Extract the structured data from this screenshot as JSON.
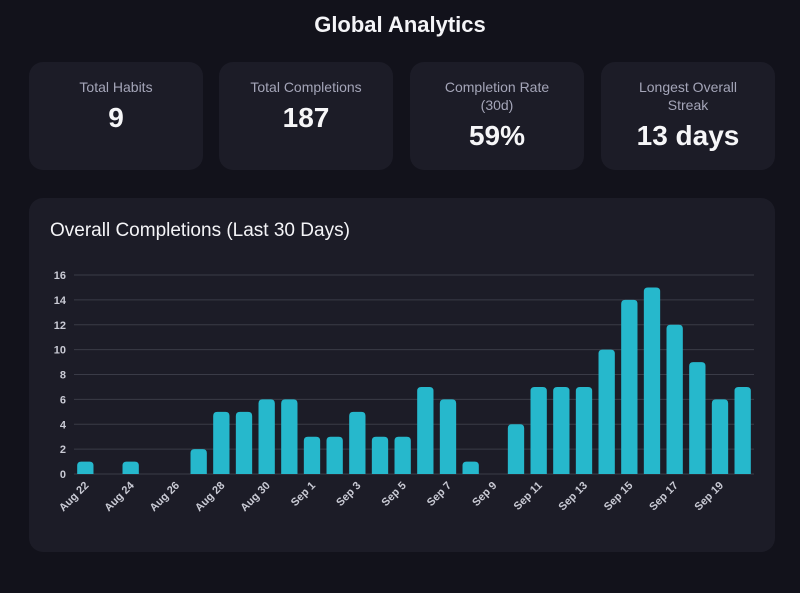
{
  "page": {
    "title": "Global Analytics"
  },
  "stats": [
    {
      "label": "Total Habits",
      "value": "9"
    },
    {
      "label": "Total Completions",
      "value": "187"
    },
    {
      "label": "Completion Rate (30d)",
      "value": "59%"
    },
    {
      "label": "Longest Overall Streak",
      "value": "13 days"
    }
  ],
  "chart_card": {
    "title": "Overall Completions (Last 30 Days)"
  },
  "colors": {
    "bar": "#26b8cc",
    "background": "#12121b",
    "card": "#1c1c27",
    "grid": "#3a3b47"
  },
  "chart_data": {
    "type": "bar",
    "title": "Overall Completions (Last 30 Days)",
    "xlabel": "",
    "ylabel": "",
    "ylim": [
      0,
      16
    ],
    "yticks": [
      0,
      2,
      4,
      6,
      8,
      10,
      12,
      14,
      16
    ],
    "grid": true,
    "legend": "none",
    "categories": [
      "Aug 22",
      "Aug 23",
      "Aug 24",
      "Aug 25",
      "Aug 26",
      "Aug 27",
      "Aug 28",
      "Aug 29",
      "Aug 30",
      "Aug 31",
      "Sep 1",
      "Sep 2",
      "Sep 3",
      "Sep 4",
      "Sep 5",
      "Sep 6",
      "Sep 7",
      "Sep 8",
      "Sep 9",
      "Sep 10",
      "Sep 11",
      "Sep 12",
      "Sep 13",
      "Sep 14",
      "Sep 15",
      "Sep 16",
      "Sep 17",
      "Sep 18",
      "Sep 19",
      "Sep 20"
    ],
    "shown_xtick_labels": [
      "Aug 22",
      "Aug 24",
      "Aug 26",
      "Aug 28",
      "Aug 30",
      "Sep 1",
      "Sep 3",
      "Sep 5",
      "Sep 7",
      "Sep 9",
      "Sep 11",
      "Sep 13",
      "Sep 15",
      "Sep 17",
      "Sep 19"
    ],
    "values": [
      1,
      0,
      1,
      0,
      0,
      2,
      5,
      5,
      6,
      6,
      3,
      3,
      5,
      3,
      3,
      7,
      6,
      1,
      0,
      4,
      7,
      7,
      7,
      10,
      14,
      15,
      12,
      9,
      6,
      7
    ]
  }
}
